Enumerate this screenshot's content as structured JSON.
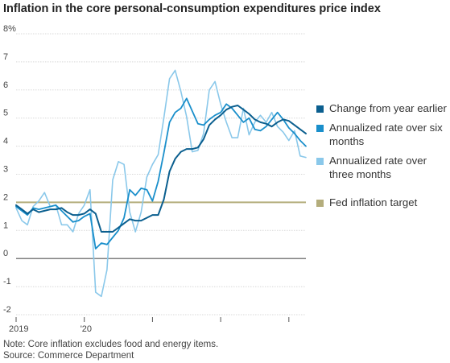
{
  "chart_data": {
    "type": "line",
    "title": "Inflation in the core personal-consumption expenditures price index",
    "y_ticks": [
      {
        "value": 8,
        "label": "8%"
      },
      {
        "value": 7,
        "label": "7"
      },
      {
        "value": 6,
        "label": "6"
      },
      {
        "value": 5,
        "label": "5"
      },
      {
        "value": 4,
        "label": "4"
      },
      {
        "value": 3,
        "label": "3"
      },
      {
        "value": 2,
        "label": "2"
      },
      {
        "value": 1,
        "label": "1"
      },
      {
        "value": 0,
        "label": "0"
      },
      {
        "value": -1,
        "label": "-1"
      },
      {
        "value": -2,
        "label": "-2"
      }
    ],
    "ylim": [
      -2,
      8
    ],
    "x_ticks": [
      {
        "index": 0,
        "label": "2019"
      },
      {
        "index": 12,
        "label": "'20"
      },
      {
        "index": 24,
        "label": ""
      },
      {
        "index": 36,
        "label": ""
      },
      {
        "index": 48,
        "label": ""
      }
    ],
    "x_count": 52,
    "target_value": 2,
    "grid": true,
    "legend_position": "right",
    "series": [
      {
        "name": "Change from year earlier",
        "color": "#0b5f8f",
        "width": 2,
        "values": [
          1.9,
          1.75,
          1.6,
          1.75,
          1.65,
          1.7,
          1.75,
          1.75,
          1.8,
          1.65,
          1.55,
          1.55,
          1.6,
          1.75,
          1.6,
          0.95,
          0.95,
          0.95,
          1.1,
          1.25,
          1.4,
          1.35,
          1.35,
          1.45,
          1.55,
          1.55,
          2.1,
          3.1,
          3.55,
          3.8,
          3.9,
          3.9,
          3.95,
          4.25,
          4.75,
          4.95,
          5.1,
          5.3,
          5.4,
          5.45,
          5.3,
          5.15,
          4.95,
          4.85,
          4.8,
          4.7,
          4.85,
          4.95,
          4.9,
          4.75,
          4.6,
          4.45
        ]
      },
      {
        "name": "Annualized rate over six months",
        "color": "#1a8fcb",
        "width": 1.8,
        "values": [
          1.85,
          1.7,
          1.55,
          1.8,
          1.75,
          1.8,
          1.85,
          1.9,
          1.7,
          1.5,
          1.3,
          1.35,
          1.5,
          1.6,
          0.35,
          0.55,
          0.5,
          0.75,
          1.0,
          1.45,
          2.45,
          2.25,
          2.5,
          2.45,
          2.05,
          2.75,
          3.75,
          4.85,
          5.2,
          5.35,
          5.7,
          5.25,
          4.8,
          4.75,
          4.95,
          5.1,
          5.2,
          5.5,
          5.35,
          5.1,
          4.85,
          5.0,
          4.6,
          4.55,
          4.7,
          4.95,
          5.2,
          4.95,
          4.65,
          4.45,
          4.2,
          4.0
        ]
      },
      {
        "name": "Annualized rate over three months",
        "color": "#8ac8ea",
        "width": 1.6,
        "values": [
          1.8,
          1.35,
          1.2,
          1.85,
          2.05,
          2.35,
          1.85,
          1.9,
          1.2,
          1.2,
          0.95,
          1.6,
          1.9,
          2.45,
          -1.2,
          -1.35,
          -0.4,
          2.8,
          3.45,
          3.35,
          1.65,
          0.95,
          1.65,
          2.9,
          3.35,
          3.7,
          5.0,
          6.4,
          6.7,
          5.95,
          5.05,
          3.8,
          3.85,
          4.45,
          6.0,
          6.3,
          5.5,
          4.85,
          4.3,
          4.3,
          5.35,
          4.4,
          4.85,
          5.1,
          4.85,
          5.2,
          4.7,
          4.5,
          4.2,
          4.55,
          3.65,
          3.6
        ]
      }
    ]
  },
  "legend": {
    "items": [
      {
        "label": "Change from year earlier",
        "color": "#0b5f8f"
      },
      {
        "label": "Annualized rate over six months",
        "color": "#1a8fcb"
      },
      {
        "label": "Annualized rate over three months",
        "color": "#8ac8ea"
      },
      {
        "label": "Fed inflation target",
        "color": "#b4ad7c"
      }
    ]
  },
  "colors": {
    "grid": "#d8d8d8",
    "zero_line": "#555555",
    "target_line": "#b4ad7c"
  },
  "notes": {
    "line1": "Note: Core inflation excludes food and energy items.",
    "line2": "Source: Commerce Department"
  }
}
